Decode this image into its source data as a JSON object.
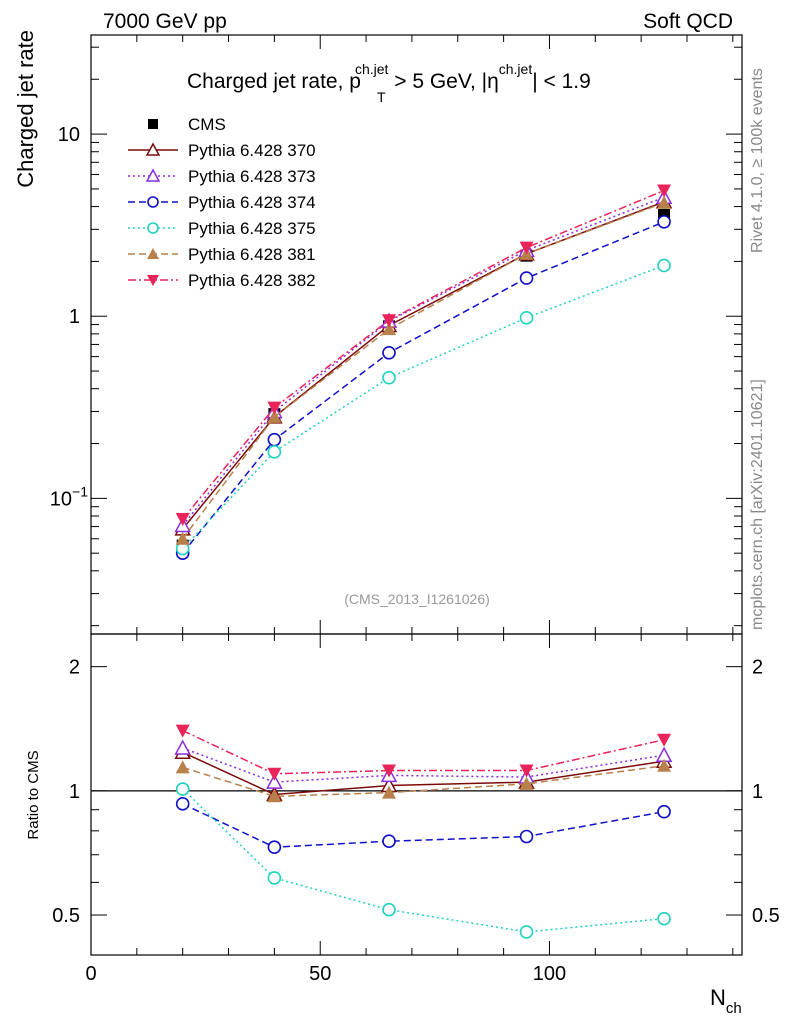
{
  "header": {
    "energy_label": "7000 GeV pp",
    "category_label": "Soft QCD"
  },
  "side_labels": {
    "rivet": "Rivet 4.1.0, ≥ 100k events",
    "mcplots": "mcplots.cern.ch [arXiv:2401.10621]"
  },
  "analysis_id": "(CMS_2013_I1261026)",
  "chart_data": [
    {
      "type": "line",
      "scale": "log",
      "title": "Charged jet rate, p_T^{ch.jet} > 5 GeV, |η^{ch.jet}| < 1.9",
      "title_parts": {
        "main": "Charged jet rate, p",
        "sub": "T",
        "sup1": "ch.jet",
        "mid": " > 5 GeV,  |η",
        "sup2": "ch.jet",
        "end": "| < 1.9"
      },
      "ylabel": "Charged jet rate",
      "xlabel": "N",
      "xlabel_sub": "ch",
      "xlim": [
        0,
        142
      ],
      "ylim": [
        0.018,
        35
      ],
      "x_ticks": [
        0,
        50,
        100
      ],
      "y_tick_labels": [
        {
          "value": 10,
          "label": "10"
        },
        {
          "value": 1,
          "label": "1"
        },
        {
          "value": 0.1,
          "label": "10",
          "sup": "−1"
        }
      ],
      "x": [
        20,
        40,
        65,
        95,
        125
      ],
      "series": [
        {
          "name": "CMS",
          "values": [
            0.055,
            0.29,
            0.88,
            2.15,
            3.6
          ],
          "color": "#000000",
          "marker": "square",
          "dash": "none"
        },
        {
          "name": "Pythia 6.428 370",
          "values": [
            0.068,
            0.28,
            0.89,
            2.2,
            4.25
          ],
          "color": "#7b0a0a",
          "marker": "triangle-up-open",
          "dash": "solid"
        },
        {
          "name": "Pythia 6.428 373",
          "values": [
            0.071,
            0.3,
            0.94,
            2.3,
            4.5
          ],
          "color": "#8a2be2",
          "marker": "triangle-up-open",
          "dash": "dotted"
        },
        {
          "name": "Pythia 6.428 374",
          "values": [
            0.05,
            0.21,
            0.63,
            1.62,
            3.3
          ],
          "color": "#1010c8",
          "marker": "circle-open",
          "dash": "dashed"
        },
        {
          "name": "Pythia 6.428 375",
          "values": [
            0.053,
            0.18,
            0.46,
            0.98,
            1.9
          ],
          "color": "#20d2c0",
          "marker": "circle-open",
          "dash": "dotted"
        },
        {
          "name": "Pythia 6.428 381",
          "values": [
            0.06,
            0.28,
            0.85,
            2.2,
            4.2
          ],
          "color": "#b8804a",
          "marker": "triangle-up-filled",
          "dash": "dashed"
        },
        {
          "name": "Pythia 6.428 382",
          "values": [
            0.077,
            0.315,
            0.95,
            2.38,
            4.9
          ],
          "color": "#e8245a",
          "marker": "triangle-down-filled",
          "dash": "dashdot"
        }
      ]
    },
    {
      "type": "line",
      "scale": "log",
      "ylabel": "Ratio to CMS",
      "xlim": [
        0,
        142
      ],
      "ylim": [
        0.4,
        2.4
      ],
      "y_ticks": [
        0.5,
        1,
        2
      ],
      "y_tick_labels": [
        "0.5",
        "1",
        "2"
      ],
      "x_ticks": [
        0,
        50,
        100
      ],
      "x": [
        20,
        40,
        65,
        95,
        125
      ],
      "series": [
        {
          "name": "Pythia 6.428 370",
          "values": [
            1.24,
            0.98,
            1.03,
            1.05,
            1.18
          ]
        },
        {
          "name": "Pythia 6.428 373",
          "values": [
            1.27,
            1.05,
            1.09,
            1.08,
            1.22
          ]
        },
        {
          "name": "Pythia 6.428 374",
          "values": [
            0.93,
            0.73,
            0.755,
            0.775,
            0.89
          ]
        },
        {
          "name": "Pythia 6.428 375",
          "values": [
            1.01,
            0.615,
            0.515,
            0.455,
            0.49
          ]
        },
        {
          "name": "Pythia 6.428 381",
          "values": [
            1.14,
            0.97,
            0.99,
            1.04,
            1.15
          ]
        },
        {
          "name": "Pythia 6.428 382",
          "values": [
            1.4,
            1.1,
            1.12,
            1.12,
            1.33
          ]
        }
      ]
    }
  ]
}
